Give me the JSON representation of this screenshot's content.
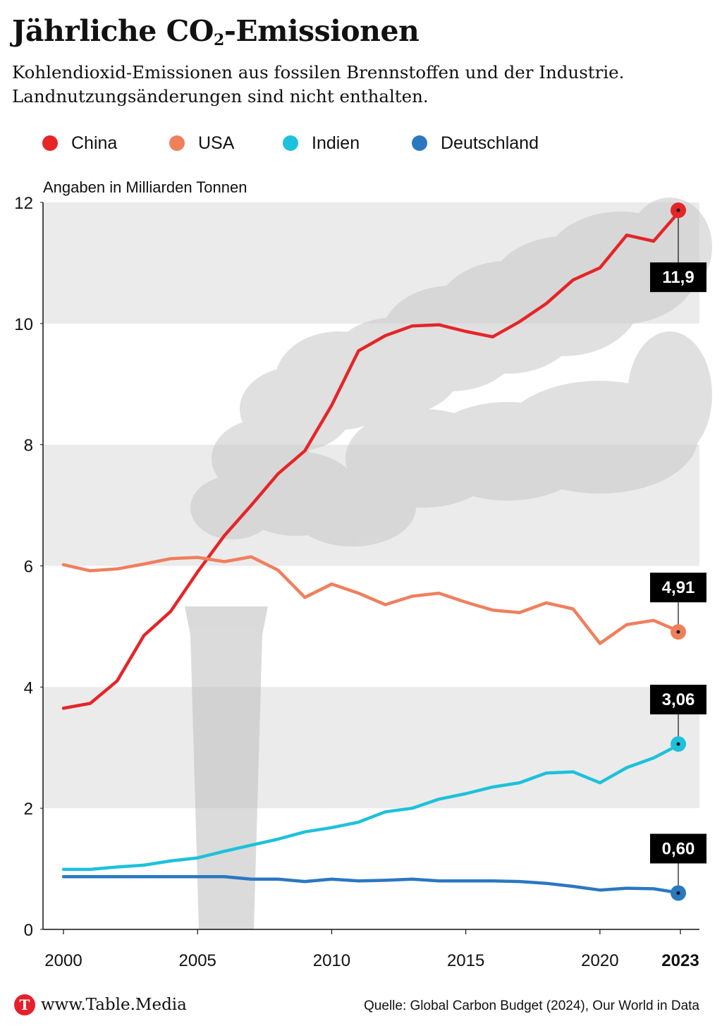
{
  "header": {
    "title_main": "Jährliche CO",
    "title_sub": "2",
    "title_rest": "-Emissionen",
    "subtitle_line1": "Kohlendioxid-Emissionen aus fossilen Brennstoffen und der Industrie.",
    "subtitle_line2": "Landnutzungsänderungen sind nicht enthalten."
  },
  "footer": {
    "logo_letter": "T",
    "logo_text": "www.Table.Media",
    "source": "Quelle: Global Carbon Budget (2024), Our World in Data"
  },
  "colors": {
    "china": "#e52528",
    "usa": "#f07f5c",
    "indien": "#1ec1db",
    "deutschland": "#2a78c0",
    "band": "#ebebec",
    "label_bg": "#000000"
  },
  "chart_data": {
    "type": "line",
    "ylabel": "Angaben in Milliarden Tonnen",
    "ylim": [
      0,
      12
    ],
    "yticks": [
      0,
      2,
      4,
      6,
      8,
      10,
      12
    ],
    "xlim": [
      2000,
      2023
    ],
    "xticks": [
      {
        "value": 2000,
        "label": "2000",
        "bold": false
      },
      {
        "value": 2005,
        "label": "2005",
        "bold": false
      },
      {
        "value": 2010,
        "label": "2010",
        "bold": false
      },
      {
        "value": 2015,
        "label": "2015",
        "bold": false
      },
      {
        "value": 2020,
        "label": "2020",
        "bold": false
      },
      {
        "value": 2023,
        "label": "2023",
        "bold": true
      }
    ],
    "x": [
      2000,
      2001,
      2002,
      2003,
      2004,
      2005,
      2006,
      2007,
      2008,
      2009,
      2010,
      2011,
      2012,
      2013,
      2014,
      2015,
      2016,
      2017,
      2018,
      2019,
      2020,
      2021,
      2022,
      2023
    ],
    "series": [
      {
        "key": "china",
        "name": "China",
        "end_label": "11,9",
        "label_side": "below",
        "values": [
          3.65,
          3.73,
          4.1,
          4.85,
          5.25,
          5.9,
          6.5,
          7.0,
          7.52,
          7.9,
          8.65,
          9.55,
          9.8,
          9.96,
          9.98,
          9.87,
          9.78,
          10.03,
          10.33,
          10.72,
          10.92,
          11.46,
          11.36,
          11.87
        ]
      },
      {
        "key": "usa",
        "name": "USA",
        "end_label": "4,91",
        "label_side": "above",
        "values": [
          6.02,
          5.92,
          5.95,
          6.03,
          6.12,
          6.14,
          6.07,
          6.15,
          5.93,
          5.48,
          5.7,
          5.55,
          5.36,
          5.5,
          5.55,
          5.4,
          5.27,
          5.23,
          5.39,
          5.29,
          4.72,
          5.03,
          5.1,
          4.91
        ]
      },
      {
        "key": "indien",
        "name": "Indien",
        "end_label": "3,06",
        "label_side": "above",
        "values": [
          0.99,
          0.99,
          1.03,
          1.06,
          1.13,
          1.18,
          1.29,
          1.39,
          1.49,
          1.61,
          1.68,
          1.77,
          1.94,
          2.0,
          2.15,
          2.24,
          2.35,
          2.42,
          2.58,
          2.6,
          2.42,
          2.67,
          2.83,
          3.06
        ]
      },
      {
        "key": "deutschland",
        "name": "Deutschland",
        "end_label": "0,60",
        "label_side": "above",
        "values": [
          0.87,
          0.87,
          0.87,
          0.87,
          0.87,
          0.87,
          0.87,
          0.83,
          0.83,
          0.79,
          0.83,
          0.8,
          0.81,
          0.83,
          0.8,
          0.8,
          0.8,
          0.79,
          0.76,
          0.71,
          0.65,
          0.68,
          0.67,
          0.6
        ]
      }
    ]
  }
}
